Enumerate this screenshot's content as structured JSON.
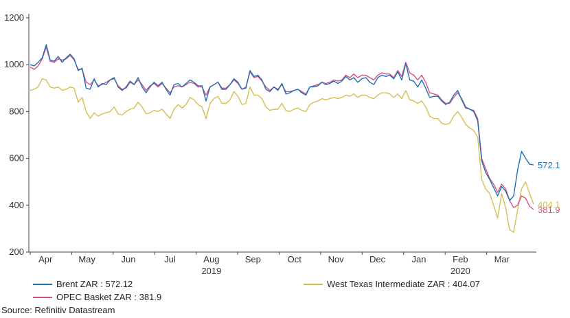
{
  "chart_data": {
    "type": "line",
    "title": "",
    "xlabel": "",
    "ylabel": "",
    "ylim": [
      200,
      1200
    ],
    "yticks": [
      200,
      400,
      600,
      800,
      1000,
      1200
    ],
    "grid": false,
    "x_start_label": "Apr",
    "month_labels": [
      "Apr",
      "May",
      "Jun",
      "Jul",
      "Aug",
      "Sep",
      "Oct",
      "Nov",
      "Dec",
      "Jan",
      "Feb",
      "Mar"
    ],
    "year_labels": [
      {
        "after": "Aug",
        "text": "2019"
      },
      {
        "after": "Feb",
        "text": "2020"
      }
    ],
    "series": [
      {
        "name": "Brent ZAR",
        "color": "#1f6fb5",
        "end_label": "572.1",
        "legend": "Brent ZAR : 572.12",
        "values": [
          1000,
          995,
          1010,
          1030,
          1085,
          1020,
          1015,
          1035,
          1010,
          1030,
          1045,
          1025,
          975,
          985,
          900,
          895,
          940,
          905,
          920,
          915,
          935,
          945,
          905,
          890,
          905,
          930,
          915,
          945,
          905,
          880,
          905,
          925,
          910,
          925,
          895,
          870,
          915,
          920,
          905,
          920,
          935,
          925,
          910,
          910,
          845,
          905,
          915,
          925,
          895,
          895,
          915,
          940,
          925,
          895,
          900,
          975,
          950,
          955,
          935,
          895,
          885,
          905,
          890,
          920,
          875,
          880,
          890,
          895,
          880,
          870,
          905,
          905,
          910,
          925,
          915,
          920,
          930,
          920,
          930,
          950,
          935,
          945,
          925,
          940,
          945,
          925,
          915,
          945,
          955,
          950,
          955,
          940,
          970,
          935,
          1005,
          935,
          930,
          905,
          935,
          900,
          860,
          865,
          865,
          845,
          830,
          840,
          870,
          890,
          850,
          815,
          810,
          800,
          760,
          590,
          540,
          510,
          475,
          440,
          480,
          460,
          420,
          440,
          550,
          630,
          600,
          575,
          572.1
        ]
      },
      {
        "name": "OPEC Basket ZAR",
        "color": "#d9507f",
        "end_label": "381.9",
        "legend": "OPEC Basket ZAR : 381.9",
        "values": [
          990,
          980,
          995,
          1025,
          1075,
          1015,
          1010,
          1025,
          1020,
          1025,
          1040,
          1020,
          980,
          980,
          925,
          915,
          935,
          910,
          915,
          925,
          935,
          940,
          910,
          895,
          900,
          925,
          915,
          935,
          915,
          890,
          910,
          920,
          905,
          920,
          900,
          880,
          905,
          910,
          905,
          915,
          925,
          920,
          905,
          905,
          870,
          905,
          915,
          925,
          900,
          900,
          915,
          935,
          920,
          895,
          905,
          970,
          945,
          950,
          930,
          905,
          890,
          905,
          895,
          915,
          885,
          885,
          890,
          895,
          885,
          875,
          905,
          910,
          915,
          925,
          920,
          925,
          935,
          930,
          935,
          955,
          945,
          960,
          945,
          955,
          955,
          945,
          935,
          955,
          965,
          960,
          960,
          945,
          975,
          950,
          1010,
          965,
          955,
          935,
          955,
          925,
          880,
          875,
          870,
          850,
          835,
          835,
          860,
          880,
          855,
          820,
          810,
          805,
          770,
          600,
          555,
          515,
          490,
          455,
          490,
          470,
          420,
          390,
          400,
          440,
          430,
          395,
          381.9
        ]
      },
      {
        "name": "West Texas Intermediate ZAR",
        "color": "#d4bf52",
        "end_label": "404.1",
        "legend": "West Texas Intermediate ZAR : 404.07",
        "values": [
          890,
          895,
          905,
          940,
          935,
          905,
          900,
          905,
          890,
          895,
          905,
          900,
          840,
          860,
          800,
          770,
          795,
          780,
          790,
          795,
          800,
          820,
          790,
          785,
          800,
          810,
          815,
          840,
          820,
          790,
          795,
          805,
          800,
          810,
          790,
          770,
          810,
          830,
          815,
          830,
          860,
          850,
          830,
          820,
          770,
          835,
          855,
          865,
          835,
          835,
          850,
          885,
          865,
          830,
          835,
          905,
          870,
          870,
          855,
          820,
          805,
          810,
          810,
          835,
          805,
          800,
          810,
          815,
          805,
          800,
          830,
          840,
          845,
          855,
          850,
          855,
          860,
          855,
          860,
          870,
          865,
          875,
          860,
          870,
          870,
          860,
          855,
          870,
          880,
          880,
          875,
          860,
          875,
          855,
          890,
          850,
          845,
          835,
          845,
          820,
          780,
          770,
          770,
          750,
          745,
          750,
          780,
          800,
          775,
          745,
          730,
          720,
          690,
          510,
          470,
          450,
          400,
          345,
          450,
          390,
          295,
          285,
          380,
          470,
          500,
          450,
          404.1
        ]
      }
    ]
  },
  "source_text": "Source: Refinitiv Datastream"
}
